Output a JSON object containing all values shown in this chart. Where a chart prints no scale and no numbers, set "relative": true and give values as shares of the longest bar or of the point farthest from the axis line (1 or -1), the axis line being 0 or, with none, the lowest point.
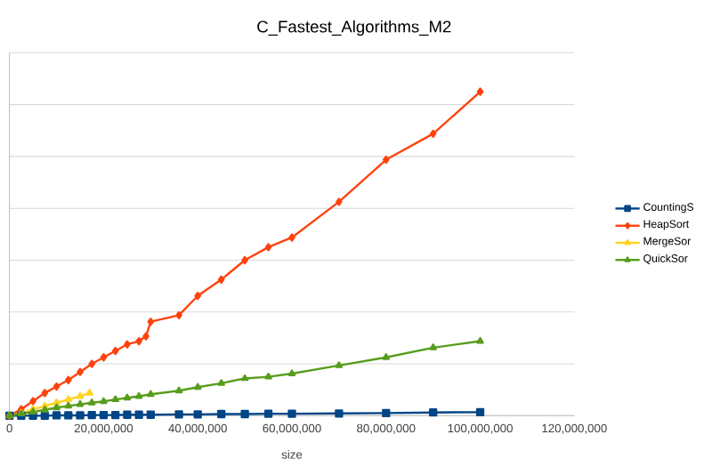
{
  "chart_data": {
    "type": "line",
    "title": "C_Fastest_Algorithms_M2",
    "xlabel": "size",
    "relative": true,
    "xlim": [
      0,
      120000000
    ],
    "xticks": [
      {
        "value": 0,
        "label": "0"
      },
      {
        "value": 20000000,
        "label": "20,000,000"
      },
      {
        "value": 40000000,
        "label": "40,000,000"
      },
      {
        "value": 60000000,
        "label": "60,000,000"
      },
      {
        "value": 80000000,
        "label": "80,000,000"
      },
      {
        "value": 100000000,
        "label": "100,000,000"
      },
      {
        "value": 120000000,
        "label": "120,000,000"
      }
    ],
    "grid": "y",
    "legend": "right",
    "tick_labels": "x",
    "line_style": "solid",
    "series": [
      {
        "name": "CountingS",
        "color": "#004586",
        "marker": "square",
        "x": [
          0,
          2500000,
          5000000,
          7500000,
          10000000,
          12500000,
          15000000,
          17500000,
          20000000,
          22500000,
          25000000,
          27500000,
          30000000,
          36000000,
          40000000,
          45000000,
          50000000,
          55000000,
          60000000,
          70000000,
          80000000,
          90000000,
          100000000
        ],
        "values": [
          0,
          0,
          0,
          0,
          0.001,
          0.001,
          0.001,
          0.002,
          0.002,
          0.002,
          0.003,
          0.003,
          0.003,
          0.004,
          0.004,
          0.005,
          0.005,
          0.006,
          0.006,
          0.007,
          0.008,
          0.01,
          0.011
        ]
      },
      {
        "name": "HeapSort",
        "color": "#ff420e",
        "marker": "diamond",
        "x": [
          0,
          2500000,
          5000000,
          7500000,
          10000000,
          12500000,
          15000000,
          17500000,
          20000000,
          22500000,
          25000000,
          27500000,
          29000000,
          30000000,
          36000000,
          40000000,
          45000000,
          50000000,
          55000000,
          60000000,
          70000000,
          80000000,
          90000000,
          100000000
        ],
        "values": [
          0,
          0.02,
          0.045,
          0.07,
          0.09,
          0.11,
          0.135,
          0.16,
          0.18,
          0.2,
          0.22,
          0.23,
          0.245,
          0.29,
          0.31,
          0.37,
          0.42,
          0.48,
          0.52,
          0.55,
          0.66,
          0.79,
          0.87,
          1.0
        ]
      },
      {
        "name": "MergeSor",
        "color": "#ffd320",
        "marker": "triangle",
        "x": [
          0,
          2500000,
          5000000,
          7500000,
          10000000,
          12500000,
          15000000,
          17000000
        ],
        "values": [
          0,
          0.008,
          0.02,
          0.03,
          0.04,
          0.05,
          0.06,
          0.07
        ]
      },
      {
        "name": "QuickSor",
        "color": "#579d1c",
        "marker": "triangle",
        "x": [
          0,
          2500000,
          5000000,
          7500000,
          10000000,
          12500000,
          15000000,
          17500000,
          20000000,
          22500000,
          25000000,
          27500000,
          30000000,
          36000000,
          40000000,
          45000000,
          50000000,
          55000000,
          60000000,
          70000000,
          80000000,
          90000000,
          100000000
        ],
        "values": [
          0,
          0.006,
          0.012,
          0.018,
          0.025,
          0.03,
          0.035,
          0.04,
          0.044,
          0.05,
          0.055,
          0.06,
          0.066,
          0.077,
          0.088,
          0.1,
          0.115,
          0.12,
          0.13,
          0.155,
          0.18,
          0.21,
          0.23
        ]
      }
    ]
  }
}
